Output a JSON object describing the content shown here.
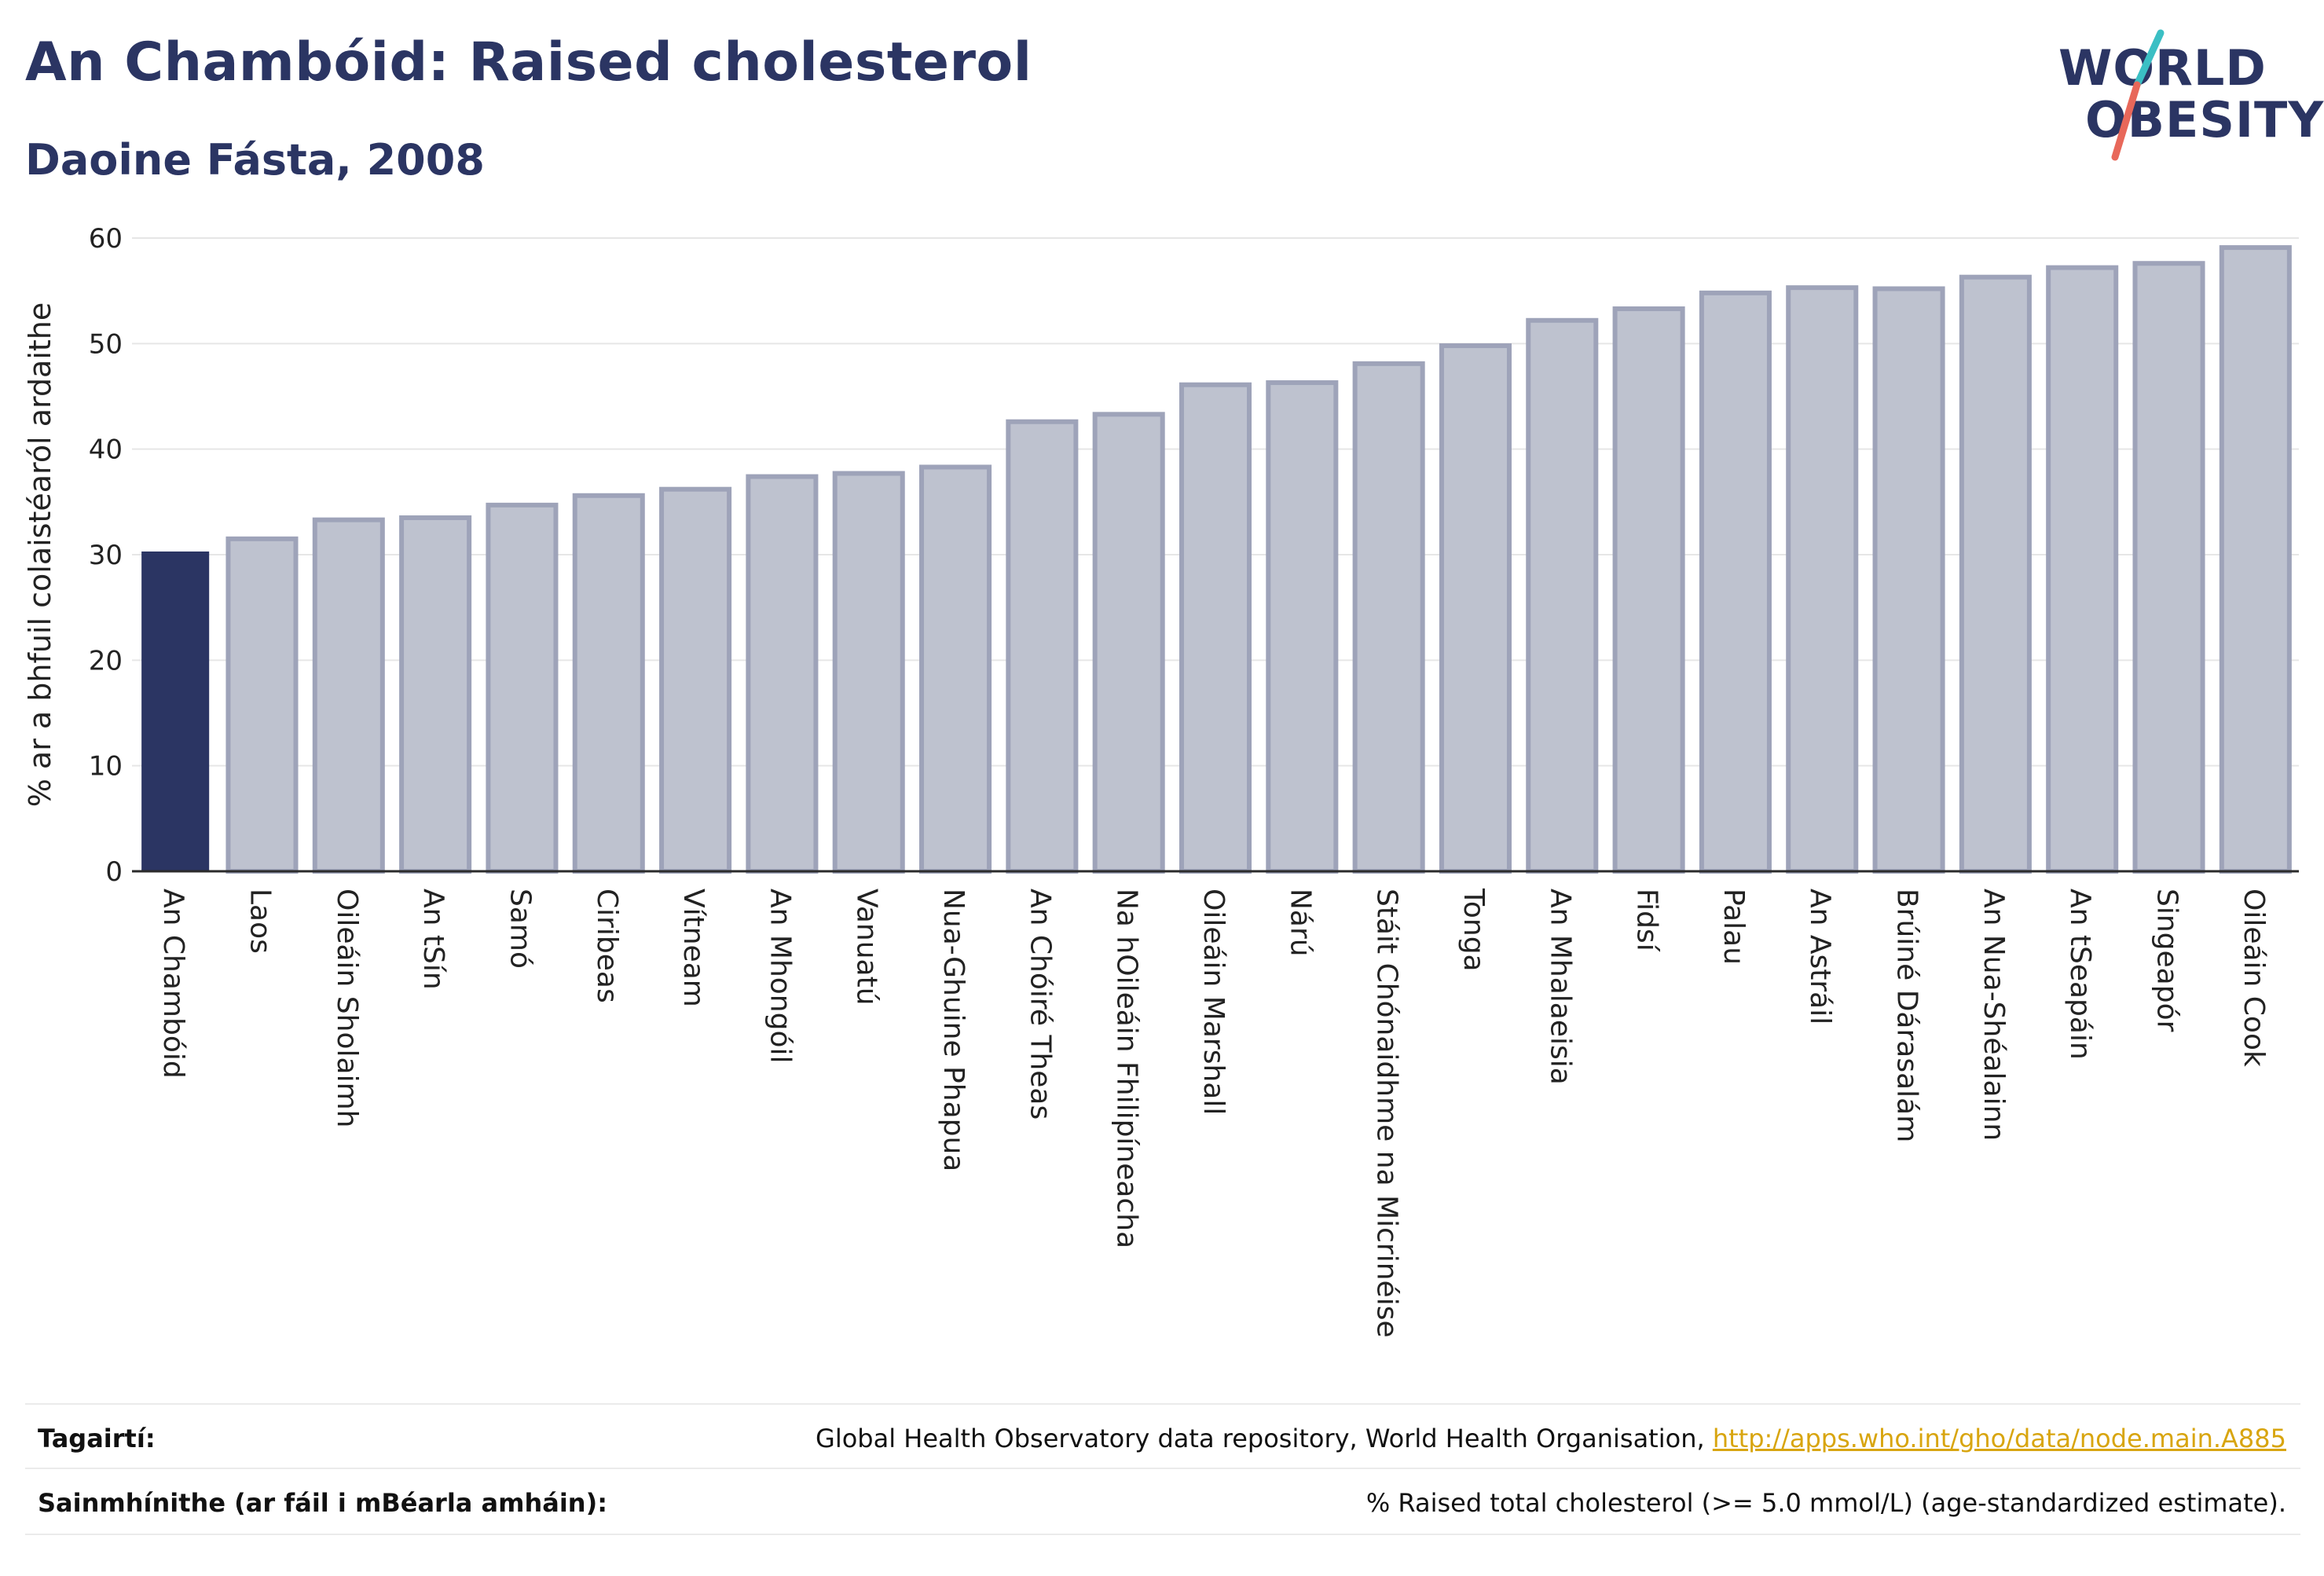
{
  "header": {
    "title": "An Chambóid: Raised cholesterol",
    "subtitle": "Daoine Fásta, 2008"
  },
  "logo": {
    "line1": "WORLD",
    "line2": "OBESITY",
    "accent_colors": [
      "#3bbfc4",
      "#e8685a"
    ]
  },
  "colors": {
    "highlight": "#2b3563",
    "bar": "#bec2cf",
    "bar_edge": "#9ea3b9",
    "axis": "#2b2b2b",
    "grid": "#e6e6e6",
    "link": "#d8a50f"
  },
  "chart_data": {
    "type": "bar",
    "ylabel": "% ar a bhfuil colaistéaról ardaithe",
    "xlabel": "",
    "ylim": [
      0,
      60
    ],
    "yticks": [
      0,
      10,
      20,
      30,
      40,
      50,
      60
    ],
    "grid": true,
    "highlight_category": "An Chambóid",
    "categories": [
      "An Chambóid",
      "Laos",
      "Oileáin Sholaimh",
      "An tSín",
      "Samó",
      "Ciribeas",
      "Vítneam",
      "An Mhongóil",
      "Vanuatú",
      "Nua-Ghuine Phapua",
      "An Chóiré Theas",
      "Na hOileáin Fhilipíneacha",
      "Oileáin Marshall",
      "Nárú",
      "Stáit Chónaidhme na Micrinéise",
      "Tonga",
      "An Mhalaeisia",
      "Fidsí",
      "Palau",
      "An Astráil",
      "Brúiné Dárasalám",
      "An Nua-Shéalainn",
      "An tSeapáin",
      "Singeapór",
      "Oileáin Cook"
    ],
    "values": [
      30.3,
      31.5,
      33.3,
      33.5,
      34.7,
      35.6,
      36.2,
      37.4,
      37.7,
      38.3,
      42.6,
      43.3,
      46.1,
      46.3,
      48.1,
      49.8,
      52.2,
      53.3,
      54.8,
      55.3,
      55.2,
      56.3,
      57.2,
      57.6,
      59.1
    ]
  },
  "footer": {
    "references_label": "Tagairtí:",
    "references_text": "Global Health Observatory data repository, World Health Organisation, ",
    "references_link": "http://apps.who.int/gho/data/node.main.A885",
    "definitions_label": "Sainmhínithe (ar fáil i mBéarla amháin):",
    "definitions_text": "% Raised total cholesterol (>= 5.0 mmol/L) (age-standardized estimate)."
  }
}
